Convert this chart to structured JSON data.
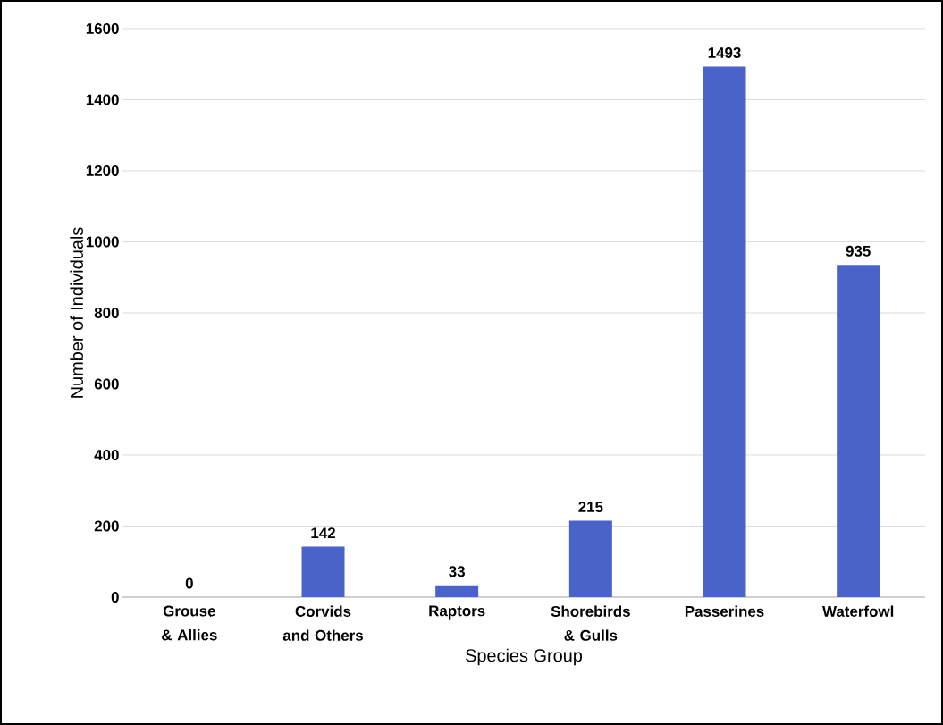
{
  "chart_data": {
    "type": "bar",
    "xlabel": "Species Group",
    "ylabel": "Number of Individuals",
    "categories": [
      "Grouse & Allies",
      "Corvids and Others",
      "Raptors",
      "Shorebirds & Gulls",
      "Passerines",
      "Waterfowl"
    ],
    "values": [
      0,
      142,
      33,
      215,
      1493,
      935
    ],
    "color": "#4a63c8",
    "ylim": [
      0,
      1600
    ],
    "yticks": [
      0,
      200,
      400,
      600,
      800,
      1000,
      1200,
      1400,
      1600
    ],
    "grid": "y",
    "data_labels": true
  }
}
